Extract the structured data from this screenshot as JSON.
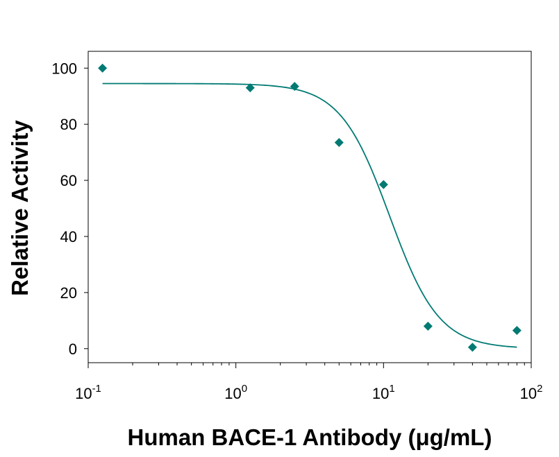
{
  "chart_data": {
    "type": "scatter",
    "title": "",
    "xlabel": "Human BACE-1 Antibody (μg/mL)",
    "ylabel": "Relative Activity",
    "x_scale": "log",
    "xlim": [
      0.1,
      100
    ],
    "ylim": [
      -5,
      106
    ],
    "grid": false,
    "y_ticks": [
      0,
      20,
      40,
      60,
      80,
      100
    ],
    "y_tick_labels": [
      "0",
      "20",
      "40",
      "60",
      "80",
      "100"
    ],
    "x_ticks": [
      0.1,
      1,
      10,
      100
    ],
    "x_tick_labels": [
      {
        "base": "10",
        "exp": "-1"
      },
      {
        "base": "10",
        "exp": "0"
      },
      {
        "base": "10",
        "exp": "1"
      },
      {
        "base": "10",
        "exp": "2"
      }
    ],
    "series": [
      {
        "marker": "diamond",
        "color": "#007a73",
        "x": [
          0.125,
          1.25,
          2.5,
          5,
          10,
          20,
          40,
          80
        ],
        "y": [
          100,
          93,
          93.5,
          73.5,
          58.5,
          8,
          0.5,
          6.5
        ]
      }
    ],
    "fit_curve": {
      "type": "four-parameter-logistic",
      "color": "#007a73",
      "top": 94.5,
      "bottom": 0,
      "ec50": 11,
      "hill": 2.6
    }
  }
}
